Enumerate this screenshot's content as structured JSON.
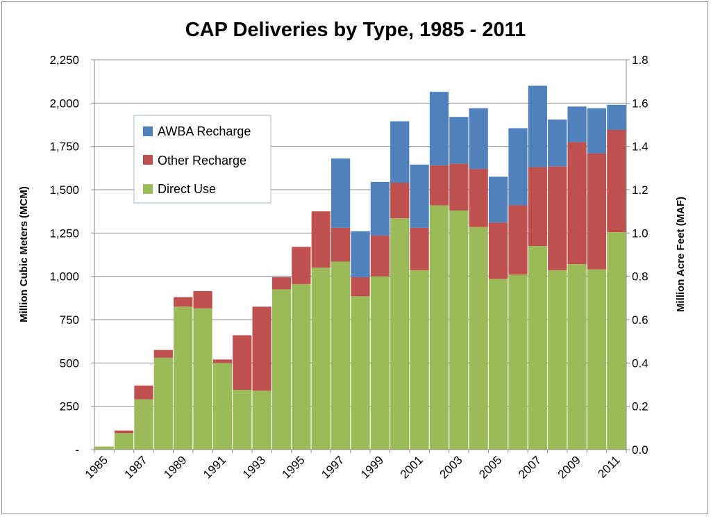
{
  "chart_data": {
    "type": "bar",
    "stacked": true,
    "title": "CAP Deliveries by Type, 1985 - 2011",
    "ylabel_left": "Million Cubic Meters (MCM)",
    "ylabel_right": "Million Acre Feet (MAF)",
    "xlabel": "",
    "ylim_left": [
      0,
      2250
    ],
    "ylim_right": [
      0,
      1.8
    ],
    "yticks_left": [
      "-",
      "250",
      "500",
      "750",
      "1,000",
      "1,250",
      "1,500",
      "1,750",
      "2,000",
      "2,250"
    ],
    "yticks_right": [
      "0.0",
      "0.2",
      "0.4",
      "0.6",
      "0.8",
      "1.0",
      "1.2",
      "1.4",
      "1.6",
      "1.8"
    ],
    "categories": [
      "1985",
      "1986",
      "1987",
      "1988",
      "1989",
      "1990",
      "1991",
      "1992",
      "1993",
      "1994",
      "1995",
      "1996",
      "1997",
      "1998",
      "1999",
      "2000",
      "2001",
      "2002",
      "2003",
      "2004",
      "2005",
      "2006",
      "2007",
      "2008",
      "2009",
      "2010",
      "2011"
    ],
    "xtick_labels": [
      "1985",
      "",
      "1987",
      "",
      "1989",
      "",
      "1991",
      "",
      "1993",
      "",
      "1995",
      "",
      "1997",
      "",
      "1999",
      "",
      "2001",
      "",
      "2003",
      "",
      "2005",
      "",
      "2007",
      "",
      "2009",
      "",
      "2011"
    ],
    "legend_position": "top-left",
    "series": [
      {
        "name": "Direct Use",
        "color": "#9bbb59",
        "values": [
          18,
          95,
          290,
          530,
          825,
          815,
          500,
          345,
          340,
          925,
          955,
          1050,
          1085,
          885,
          1000,
          1335,
          1035,
          1410,
          1380,
          1285,
          985,
          1010,
          1175,
          1035,
          1070,
          1040,
          1255
        ]
      },
      {
        "name": "Other Recharge",
        "color": "#c0504d",
        "values": [
          0,
          15,
          80,
          45,
          55,
          100,
          20,
          315,
          485,
          70,
          215,
          325,
          195,
          110,
          235,
          205,
          245,
          230,
          270,
          335,
          325,
          400,
          455,
          600,
          705,
          670,
          590
        ]
      },
      {
        "name": "AWBA Recharge",
        "color": "#4f81bd",
        "values": [
          0,
          0,
          0,
          0,
          0,
          0,
          0,
          0,
          0,
          0,
          0,
          0,
          400,
          265,
          310,
          355,
          365,
          425,
          270,
          350,
          265,
          445,
          470,
          270,
          205,
          260,
          145
        ]
      }
    ],
    "legend_order": [
      "AWBA Recharge",
      "Other Recharge",
      "Direct Use"
    ]
  }
}
